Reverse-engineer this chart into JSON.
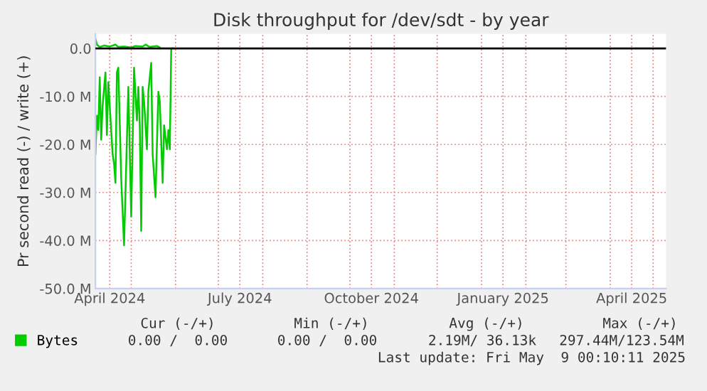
{
  "chart_data": {
    "type": "line",
    "title": "Disk throughput for /dev/sdt - by year",
    "ylabel": "Pr second read (-) / write (+)",
    "xlim": [
      "2024-04-06",
      "2025-05-10"
    ],
    "xticks": [
      {
        "value": "2024-04-16",
        "label": "April 2024"
      },
      {
        "value": "2024-05-01",
        "label": null
      },
      {
        "value": "2024-06-01",
        "label": null
      },
      {
        "value": "2024-07-01",
        "label": null
      },
      {
        "value": "2024-07-16",
        "label": "July 2024"
      },
      {
        "value": "2024-08-01",
        "label": null
      },
      {
        "value": "2024-09-01",
        "label": null
      },
      {
        "value": "2024-10-01",
        "label": null
      },
      {
        "value": "2024-10-16",
        "label": "October 2024"
      },
      {
        "value": "2024-11-01",
        "label": null
      },
      {
        "value": "2024-12-01",
        "label": null
      },
      {
        "value": "2025-01-01",
        "label": null
      },
      {
        "value": "2025-01-16",
        "label": "January 2025"
      },
      {
        "value": "2025-02-01",
        "label": null
      },
      {
        "value": "2025-03-01",
        "label": null
      },
      {
        "value": "2025-04-01",
        "label": null
      },
      {
        "value": "2025-04-16",
        "label": "April 2025"
      },
      {
        "value": "2025-05-01",
        "label": null
      }
    ],
    "ylim": [
      -50,
      3
    ],
    "yticks": [
      {
        "value": -50,
        "label": "-50.0 M"
      },
      {
        "value": -40,
        "label": "-40.0 M"
      },
      {
        "value": -30,
        "label": "-30.0 M"
      },
      {
        "value": -20,
        "label": "-20.0 M"
      },
      {
        "value": -10,
        "label": "-10.0 M"
      },
      {
        "value": 0,
        "label": "0.0"
      }
    ],
    "grid": true,
    "legend": "bottom",
    "marker": "none",
    "line_style": "solid",
    "ref_lines": [
      {
        "axis": "y",
        "value": 0,
        "color": "#000000"
      }
    ],
    "series": [
      {
        "name": "Bytes",
        "color": "#00cc00",
        "x": [
          "2024-04-06",
          "2024-04-07",
          "2024-04-08",
          "2024-04-09",
          "2024-04-10",
          "2024-04-11",
          "2024-04-13",
          "2024-04-14",
          "2024-04-15",
          "2024-04-16",
          "2024-04-18",
          "2024-04-19",
          "2024-04-20",
          "2024-04-21",
          "2024-04-22",
          "2024-04-24",
          "2024-04-26",
          "2024-04-29",
          "2024-05-01",
          "2024-05-03",
          "2024-05-05",
          "2024-05-06",
          "2024-05-07",
          "2024-05-08",
          "2024-05-09",
          "2024-05-10",
          "2024-05-12",
          "2024-05-13",
          "2024-05-15",
          "2024-05-16",
          "2024-05-18",
          "2024-05-20",
          "2024-05-21",
          "2024-05-23",
          "2024-05-24",
          "2024-05-26",
          "2024-05-27",
          "2024-05-28",
          "2024-05-29",
          "2024-05-30"
        ],
        "values": [
          -22,
          -14,
          -17,
          -6,
          -19,
          -12,
          -5,
          -18,
          -7,
          -12,
          -22,
          -24,
          -28,
          -5,
          -4,
          -27,
          -41,
          -8,
          -35,
          -4,
          -15,
          -8,
          -16,
          -38,
          -8,
          -11,
          -21,
          -9,
          -3,
          -22,
          -31,
          -9,
          -11,
          -28,
          -16,
          -21,
          -17,
          -21,
          0,
          0
        ]
      },
      {
        "color": "#00cc00",
        "x": [
          "2024-04-06",
          "2024-04-07",
          "2024-04-09",
          "2024-04-12",
          "2024-04-16",
          "2024-04-20",
          "2024-04-22",
          "2024-04-26",
          "2024-05-01",
          "2024-05-04",
          "2024-05-09",
          "2024-05-11",
          "2024-05-14",
          "2024-05-19",
          "2024-05-21"
        ],
        "values": [
          2,
          0.8,
          0.3,
          0.6,
          0.4,
          0.8,
          0.3,
          0.4,
          0.2,
          0.5,
          0.4,
          0.8,
          0.3,
          0.5,
          0.2
        ]
      }
    ],
    "annotations": [
      "Cur (-/+)",
      "Min (-/+)",
      "Avg (-/+)",
      "Max (-/+)",
      "0.00 /  0.00",
      "0.00 /  0.00",
      "2.19M/ 36.13k",
      "297.44M/123.54M",
      "Last update: Fri May  9 00:10:11 2025"
    ]
  }
}
